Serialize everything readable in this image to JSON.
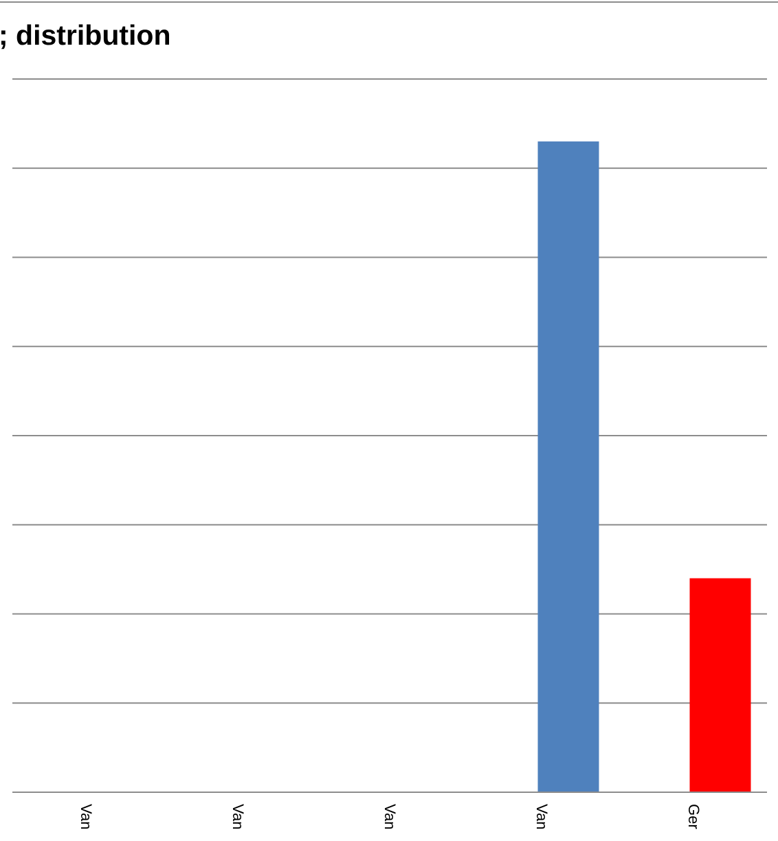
{
  "chart_data": {
    "type": "bar",
    "title": "; distribution",
    "categories": [
      "Van",
      "Van",
      "Van",
      "Van",
      "Ger"
    ],
    "values": [
      0,
      0,
      0,
      7.3,
      2.4
    ],
    "bar_colors": [
      "#4f81bd",
      "#4f81bd",
      "#4f81bd",
      "#4f81bd",
      "#ff0000"
    ],
    "ylim": [
      0,
      8
    ],
    "gridlines": true,
    "legend": "none",
    "xlabel": "",
    "ylabel": ""
  },
  "colors": {
    "bar_primary": "#4f81bd",
    "bar_highlight": "#ff0000",
    "gridline": "#8c8c8c"
  }
}
